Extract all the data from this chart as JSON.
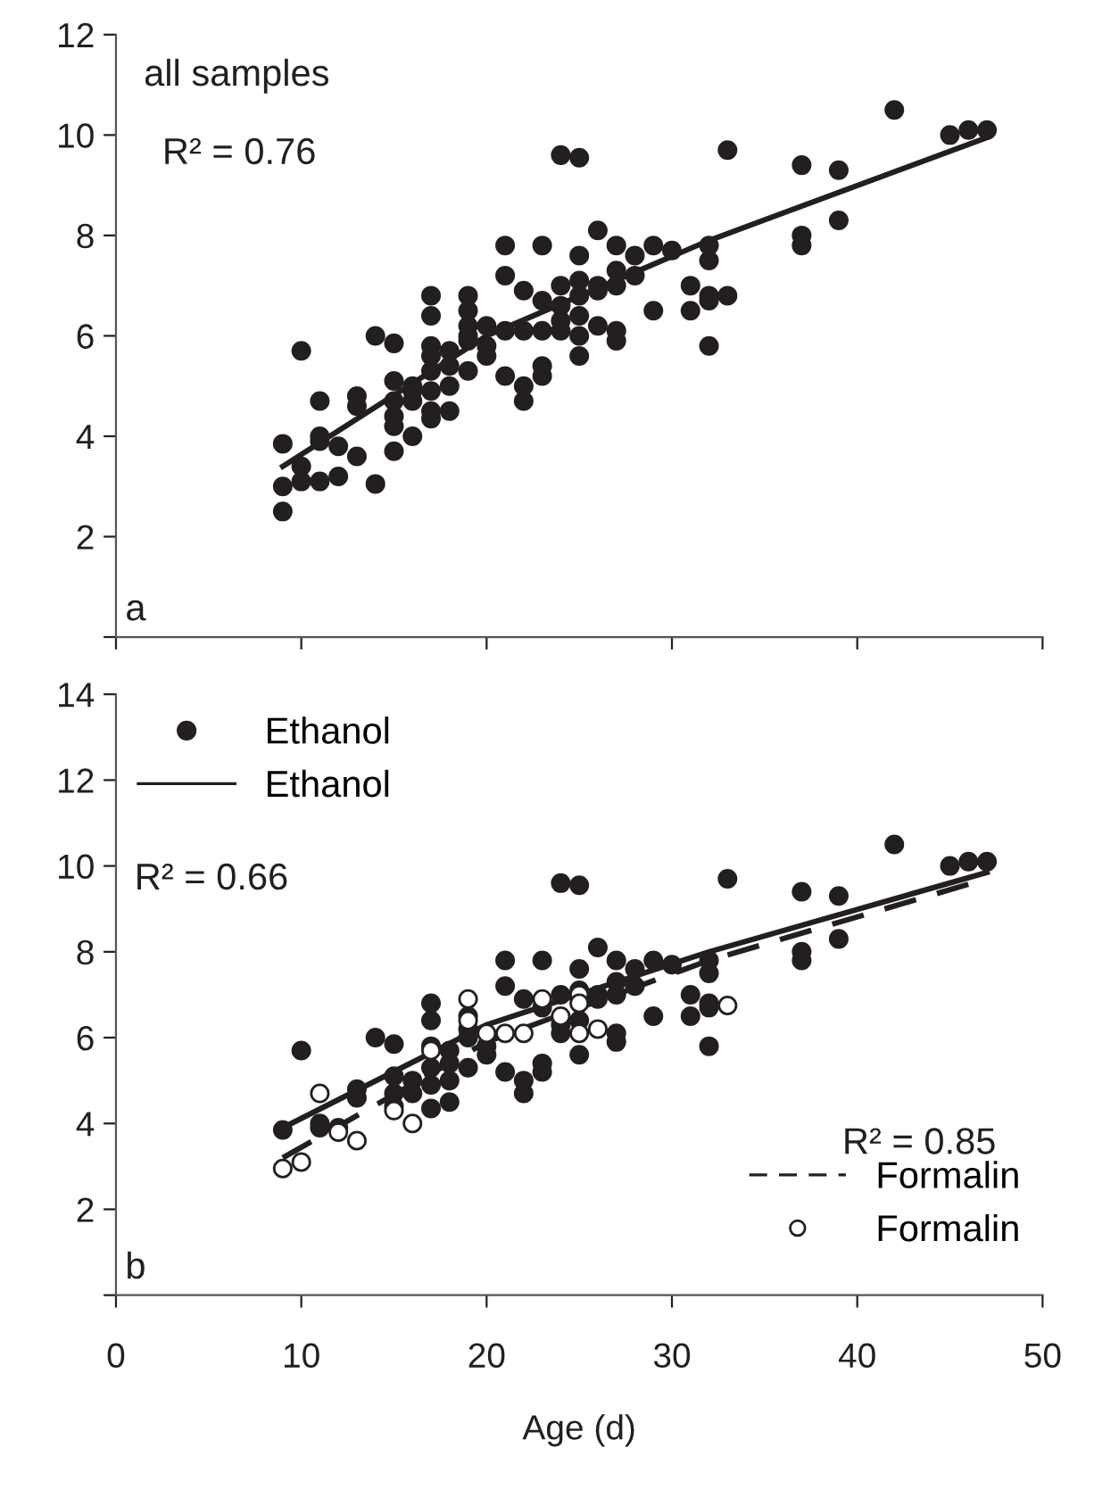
{
  "chart_data": [
    {
      "type": "scatter",
      "xlim": [
        0,
        50
      ],
      "xticks": [
        0,
        10,
        20,
        30,
        40,
        50
      ],
      "ylim": [
        0,
        12
      ],
      "yticks": [
        {
          "value": 0,
          "label": null
        },
        2,
        4,
        6,
        8,
        10,
        12
      ],
      "tick_labels": "y",
      "grid": false,
      "legend": false,
      "marker": "circle",
      "annotations": [
        "all samples",
        "R² = 0.76",
        "a"
      ],
      "series": [
        {
          "color": "#231f20",
          "x": [
            9,
            9,
            9,
            10,
            10,
            10,
            11,
            11,
            11,
            11,
            12,
            12,
            13,
            13,
            13,
            14,
            14,
            15,
            15,
            15,
            15,
            15,
            15,
            16,
            16,
            16,
            16,
            17,
            17,
            17,
            17,
            17,
            17,
            17,
            17,
            18,
            18,
            18,
            18,
            19,
            19,
            19,
            19,
            19,
            19,
            20,
            20,
            20,
            21,
            21,
            21,
            21,
            22,
            22,
            22,
            22,
            23,
            23,
            23,
            23,
            23,
            24,
            24,
            24,
            24,
            24,
            25,
            25,
            25,
            25,
            25,
            25,
            25,
            26,
            26,
            26,
            26,
            27,
            27,
            27,
            27,
            27,
            28,
            28,
            29,
            29,
            30,
            31,
            31,
            32,
            32,
            32,
            32,
            32,
            33,
            33,
            37,
            37,
            37,
            39,
            39,
            42,
            45,
            46,
            47
          ],
          "values": [
            3.85,
            3.0,
            2.5,
            5.7,
            3.4,
            3.1,
            4.7,
            4.0,
            3.9,
            3.1,
            3.8,
            3.2,
            4.8,
            4.6,
            3.6,
            6.0,
            3.05,
            5.85,
            5.1,
            4.7,
            4.4,
            4.2,
            3.7,
            5.0,
            4.9,
            4.7,
            4.0,
            6.8,
            6.4,
            5.8,
            5.6,
            5.3,
            4.9,
            4.5,
            4.35,
            5.7,
            5.4,
            5.0,
            4.5,
            6.8,
            6.5,
            6.2,
            6.0,
            5.9,
            5.3,
            6.2,
            5.8,
            5.6,
            7.8,
            7.2,
            6.1,
            5.2,
            6.9,
            6.1,
            5.0,
            4.7,
            7.8,
            6.7,
            6.1,
            5.4,
            5.2,
            9.6,
            7.0,
            6.6,
            6.3,
            6.1,
            9.55,
            7.6,
            7.1,
            6.8,
            6.4,
            6.0,
            5.6,
            8.1,
            7.0,
            6.9,
            6.2,
            7.8,
            7.3,
            7.0,
            6.1,
            5.9,
            7.6,
            7.2,
            7.8,
            6.5,
            7.7,
            7.0,
            6.5,
            7.8,
            7.5,
            6.8,
            6.7,
            5.8,
            9.7,
            6.8,
            9.4,
            8.0,
            7.8,
            9.3,
            8.3,
            10.5,
            10.0,
            10.1,
            10.1
          ]
        },
        {
          "type": "line",
          "color": "#231f20",
          "line_style": "solid",
          "marker": "none",
          "x": [
            9,
            20,
            32,
            47
          ],
          "values": [
            3.4,
            6.0,
            7.9,
            9.95
          ]
        }
      ]
    },
    {
      "type": "scatter",
      "xlim": [
        0,
        50
      ],
      "xticks": [
        0,
        10,
        20,
        30,
        40,
        50
      ],
      "ylim": [
        0,
        14
      ],
      "yticks": [
        {
          "value": 0,
          "label": null
        },
        2,
        4,
        6,
        8,
        10,
        12,
        14
      ],
      "xlabel": "Age (d)",
      "grid": false,
      "legend": "top left",
      "marker": "circle",
      "annotations": [
        "b",
        "R² = 0.66",
        "R² = 0.85"
      ],
      "series": [
        {
          "name": "Ethanol",
          "color": "#231f20",
          "x": [
            9,
            10,
            11,
            11,
            12,
            13,
            13,
            14,
            15,
            15,
            15,
            15,
            16,
            16,
            17,
            17,
            17,
            17,
            17,
            17,
            18,
            18,
            18,
            18,
            19,
            19,
            19,
            19,
            20,
            20,
            21,
            21,
            21,
            22,
            22,
            22,
            23,
            23,
            23,
            23,
            24,
            24,
            24,
            24,
            25,
            25,
            25,
            25,
            25,
            26,
            26,
            26,
            27,
            27,
            27,
            27,
            27,
            28,
            28,
            29,
            29,
            30,
            31,
            31,
            32,
            32,
            32,
            32,
            32,
            33,
            37,
            37,
            37,
            39,
            39,
            42,
            45,
            46,
            47
          ],
          "values": [
            3.85,
            5.7,
            4.0,
            3.9,
            3.9,
            4.8,
            4.6,
            6.0,
            5.85,
            5.1,
            4.7,
            4.4,
            5.0,
            4.7,
            6.8,
            6.4,
            5.8,
            5.3,
            4.9,
            4.35,
            5.7,
            5.4,
            5.0,
            4.5,
            6.5,
            6.2,
            6.0,
            5.3,
            5.8,
            5.6,
            7.8,
            7.2,
            5.2,
            6.9,
            5.0,
            4.7,
            7.8,
            6.7,
            5.4,
            5.2,
            9.6,
            7.0,
            6.3,
            6.1,
            9.55,
            7.6,
            7.1,
            6.4,
            5.6,
            8.1,
            7.0,
            6.9,
            7.8,
            7.3,
            7.0,
            6.1,
            5.9,
            7.6,
            7.2,
            7.8,
            6.5,
            7.7,
            7.0,
            6.5,
            7.8,
            7.5,
            6.8,
            6.7,
            5.8,
            9.7,
            9.4,
            8.0,
            7.8,
            9.3,
            8.3,
            10.5,
            10.0,
            10.1,
            10.1
          ]
        },
        {
          "type": "line",
          "name": "Ethanol",
          "color": "#231f20",
          "line_style": "solid",
          "marker": "none",
          "x": [
            9,
            20,
            32,
            47
          ],
          "values": [
            3.9,
            6.3,
            8.0,
            9.85
          ]
        },
        {
          "type": "line",
          "name": "Formalin",
          "color": "#231f20",
          "line_style": "dashed",
          "marker": "none",
          "x": [
            9,
            20,
            32,
            47
          ],
          "values": [
            3.2,
            5.9,
            7.8,
            9.7
          ]
        },
        {
          "name": "Formalin",
          "color": "#ffffff",
          "x": [
            9,
            10,
            11,
            12,
            13,
            15,
            16,
            17,
            19,
            19,
            20,
            21,
            22,
            23,
            24,
            25,
            25,
            25,
            26,
            33
          ],
          "values": [
            2.95,
            3.1,
            4.7,
            3.8,
            3.6,
            4.3,
            4.0,
            5.7,
            6.9,
            6.4,
            6.1,
            6.1,
            6.1,
            6.9,
            6.5,
            7.0,
            6.8,
            6.1,
            6.2,
            6.75
          ]
        }
      ]
    }
  ]
}
